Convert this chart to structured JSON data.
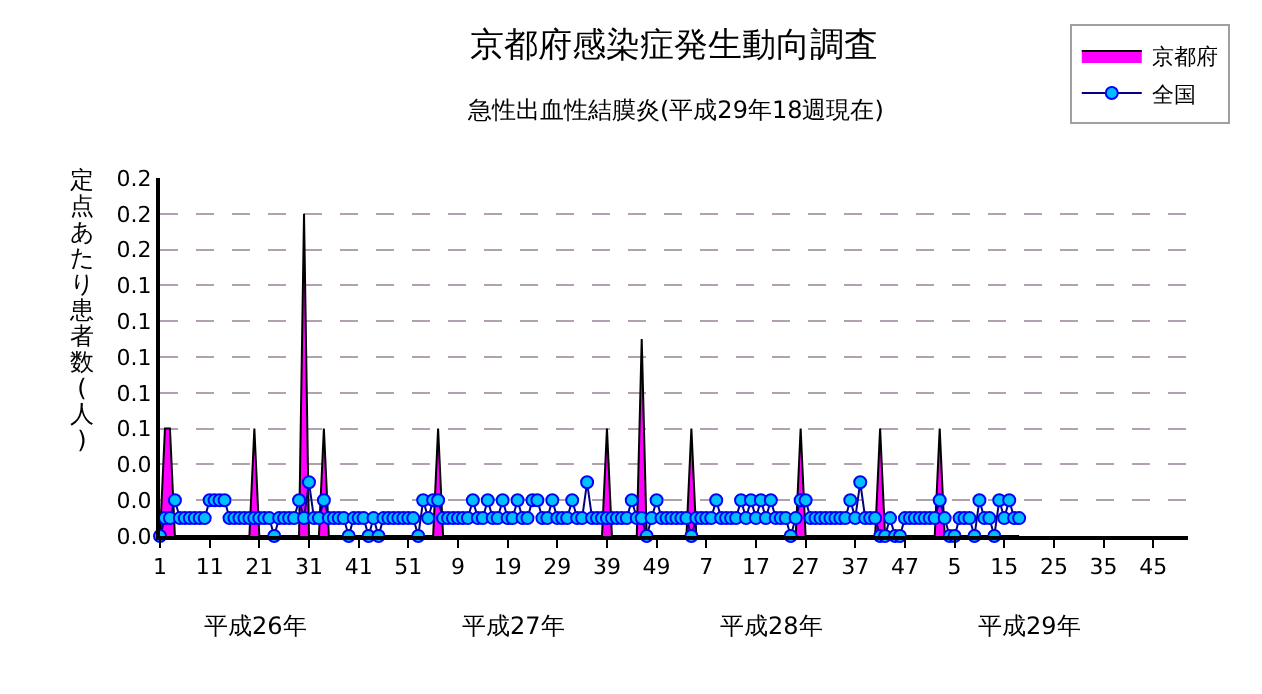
{
  "chart_data": {
    "type": "line",
    "title": "京都府感染症発生動向調査",
    "subtitle": "急性出血性結膜炎(平成29年18週現在)",
    "ylabel": "定点あたり患者数(人)",
    "annotations": [
      "平成26年",
      "平成27年",
      "平成28年",
      "平成29年"
    ],
    "categories": [
      "1",
      null,
      null,
      null,
      null,
      null,
      null,
      null,
      null,
      null,
      "11",
      null,
      null,
      null,
      null,
      null,
      null,
      null,
      null,
      null,
      "21",
      null,
      null,
      null,
      null,
      null,
      null,
      null,
      null,
      null,
      "31",
      null,
      null,
      null,
      null,
      null,
      null,
      null,
      null,
      null,
      "41",
      null,
      null,
      null,
      null,
      null,
      null,
      null,
      null,
      null,
      "51",
      null,
      null,
      null,
      null,
      null,
      null,
      null,
      null,
      null,
      "9",
      null,
      null,
      null,
      null,
      null,
      null,
      null,
      null,
      null,
      "19",
      null,
      null,
      null,
      null,
      null,
      null,
      null,
      null,
      null,
      "29",
      null,
      null,
      null,
      null,
      null,
      null,
      null,
      null,
      null,
      "39",
      null,
      null,
      null,
      null,
      null,
      null,
      null,
      null,
      null,
      "49",
      null,
      null,
      null,
      null,
      null,
      null,
      null,
      null,
      null,
      "7",
      null,
      null,
      null,
      null,
      null,
      null,
      null,
      null,
      null,
      "17",
      null,
      null,
      null,
      null,
      null,
      null,
      null,
      null,
      null,
      "27",
      null,
      null,
      null,
      null,
      null,
      null,
      null,
      null,
      null,
      "37",
      null,
      null,
      null,
      null,
      null,
      null,
      null,
      null,
      null,
      "47",
      null,
      null,
      null,
      null,
      null,
      null,
      null,
      null,
      null,
      "5",
      null,
      null,
      null,
      null,
      null,
      null,
      null,
      null,
      null,
      "15",
      null,
      null,
      null,
      null,
      null,
      null,
      null,
      null,
      null,
      "25",
      null,
      null,
      null,
      null,
      null,
      null,
      null,
      null,
      null,
      "35",
      null,
      null,
      null,
      null,
      null,
      null,
      null,
      null,
      null,
      "45",
      null,
      null,
      null,
      null,
      null,
      null,
      null
    ],
    "series": [
      {
        "name": "京都府",
        "type": "area",
        "color": "#ff00ff",
        "values": [
          0,
          0.06,
          0.06,
          0,
          0,
          0,
          0,
          0,
          0,
          0,
          0,
          0,
          0,
          0,
          0,
          0,
          0,
          0,
          0,
          0.06,
          0,
          0,
          0,
          0,
          0,
          0,
          0,
          0,
          0,
          0.18,
          0,
          0,
          0,
          0.06,
          0,
          0,
          0,
          0,
          0,
          0,
          0,
          0,
          0,
          0,
          0,
          0,
          0,
          0,
          0,
          0,
          0,
          0,
          0,
          0,
          0,
          0,
          0.06,
          0,
          0,
          0,
          0,
          0,
          0,
          0,
          0,
          0,
          0,
          0,
          0,
          0,
          0,
          0,
          0,
          0,
          0,
          0,
          0,
          0,
          0,
          0,
          0,
          0,
          0,
          0,
          0,
          0,
          0,
          0,
          0,
          0,
          0.06,
          0,
          0,
          0,
          0,
          0,
          0,
          0.11,
          0,
          0,
          0,
          0,
          0,
          0,
          0,
          0,
          0,
          0.06,
          0,
          0,
          0,
          0,
          0,
          0,
          0,
          0,
          0,
          0,
          0,
          0,
          0,
          0,
          0,
          0,
          0,
          0,
          0,
          0,
          0,
          0.06,
          0,
          0,
          0,
          0,
          0,
          0,
          0,
          0,
          0,
          0,
          0,
          0,
          0,
          0,
          0,
          0.06,
          0,
          0,
          0,
          0,
          0,
          0,
          0,
          0,
          0,
          0,
          0,
          0.06,
          0,
          0,
          0,
          0,
          0,
          0,
          0,
          0,
          0,
          0,
          0,
          0,
          0,
          0,
          0,
          0,
          null,
          null,
          null,
          null,
          null,
          null,
          null,
          null,
          null,
          null,
          null,
          null,
          null,
          null,
          null,
          null,
          null,
          null,
          null,
          null,
          null,
          null,
          null,
          null,
          null,
          null,
          null,
          null,
          null,
          null,
          null,
          null,
          null,
          null
        ]
      },
      {
        "name": "全国",
        "color": "#00bfff",
        "marker": "circle",
        "values": [
          0,
          0.01,
          0.01,
          0.02,
          0.01,
          0.01,
          0.01,
          0.01,
          0.01,
          0.01,
          0.02,
          0.02,
          0.02,
          0.02,
          0.01,
          0.01,
          0.01,
          0.01,
          0.01,
          0.01,
          0.01,
          0.01,
          0.01,
          0,
          0.01,
          0.01,
          0.01,
          0.01,
          0.02,
          0.01,
          0.03,
          0.01,
          0.01,
          0.02,
          0.01,
          0.01,
          0.01,
          0.01,
          0,
          0.01,
          0.01,
          0.01,
          0,
          0.01,
          0,
          0.01,
          0.01,
          0.01,
          0.01,
          0.01,
          0.01,
          0.01,
          0,
          0.02,
          0.01,
          0.02,
          0.02,
          0.01,
          0.01,
          0.01,
          0.01,
          0.01,
          0.01,
          0.02,
          0.01,
          0.01,
          0.02,
          0.01,
          0.01,
          0.02,
          0.01,
          0.01,
          0.02,
          0.01,
          0.01,
          0.02,
          0.02,
          0.01,
          0.01,
          0.02,
          0.01,
          0.01,
          0.01,
          0.02,
          0.01,
          0.01,
          0.03,
          0.01,
          0.01,
          0.01,
          0.01,
          0.01,
          0.01,
          0.01,
          0.01,
          0.02,
          0.01,
          0.01,
          0,
          0.01,
          0.02,
          0.01,
          0.01,
          0.01,
          0.01,
          0.01,
          0.01,
          0,
          0.01,
          0.01,
          0.01,
          0.01,
          0.02,
          0.01,
          0.01,
          0.01,
          0.01,
          0.02,
          0.01,
          0.02,
          0.01,
          0.02,
          0.01,
          0.02,
          0.01,
          0.01,
          0.01,
          0,
          0.01,
          0.02,
          0.02,
          0.01,
          0.01,
          0.01,
          0.01,
          0.01,
          0.01,
          0.01,
          0.01,
          0.02,
          0.01,
          0.03,
          0.01,
          0.01,
          0.01,
          0,
          0,
          0.01,
          0,
          0,
          0.01,
          0.01,
          0.01,
          0.01,
          0.01,
          0.01,
          0.01,
          0.02,
          0.01,
          0,
          0,
          0.01,
          0.01,
          0.01,
          0,
          0.02,
          0.01,
          0.01,
          0,
          0.02,
          0.01,
          0.02,
          0.01,
          0.01,
          null,
          null,
          null,
          null,
          null,
          null,
          null,
          null,
          null,
          null,
          null,
          null,
          null,
          null,
          null,
          null,
          null,
          null,
          null,
          null,
          null,
          null,
          null,
          null,
          null,
          null,
          null,
          null,
          null,
          null,
          null,
          null,
          null,
          null
        ]
      }
    ],
    "ylim": [
      0,
      0.2
    ],
    "yticks": [
      {
        "value": 0,
        "label": "0.0"
      },
      {
        "value": 0.02,
        "label": "0.0"
      },
      {
        "value": 0.04,
        "label": "0.0"
      },
      {
        "value": 0.06,
        "label": "0.1"
      },
      {
        "value": 0.08,
        "label": "0.1"
      },
      {
        "value": 0.1,
        "label": "0.1"
      },
      {
        "value": 0.12,
        "label": "0.1"
      },
      {
        "value": 0.14,
        "label": "0.1"
      },
      {
        "value": 0.16,
        "label": "0.2"
      },
      {
        "value": 0.18,
        "label": "0.2"
      },
      {
        "value": 0.2,
        "label": "0.2"
      }
    ],
    "grid": "y",
    "legend": "top right"
  }
}
